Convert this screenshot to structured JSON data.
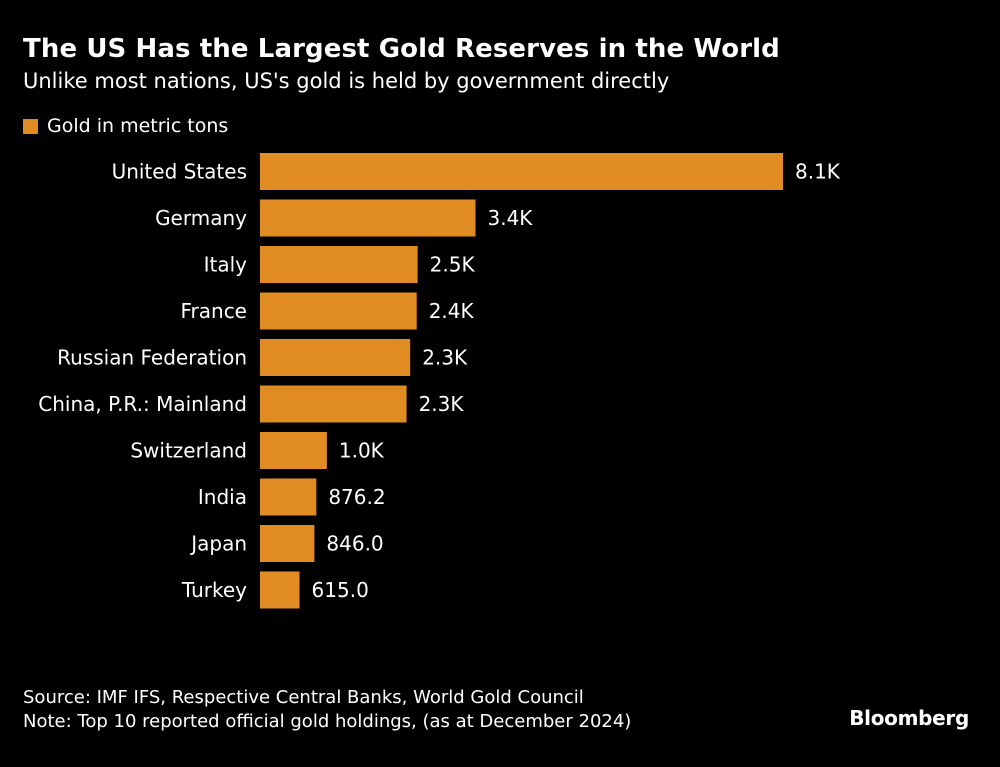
{
  "header": {
    "title": "The US Has the Largest Gold Reserves in the World",
    "subtitle": "Unlike most nations, US's gold is held by government directly"
  },
  "legend": {
    "label": "Gold in metric tons"
  },
  "colors": {
    "bar": "#e08c22",
    "background": "#000000",
    "text": "#ffffff"
  },
  "chart_data": {
    "type": "bar",
    "orientation": "horizontal",
    "title": "The US Has the Largest Gold Reserves in the World",
    "subtitle": "Unlike most nations, US's gold is held by government directly",
    "categories": [
      "United States",
      "Germany",
      "Italy",
      "France",
      "Russian Federation",
      "China, P.R.: Mainland",
      "Switzerland",
      "India",
      "Japan",
      "Turkey"
    ],
    "series": [
      {
        "name": "Gold in metric tons",
        "values": [
          8133.5,
          3351.5,
          2451.8,
          2437.0,
          2335.8,
          2279.6,
          1040.0,
          876.2,
          846.0,
          615.0
        ],
        "labels": [
          "8.1K",
          "3.4K",
          "2.5K",
          "2.4K",
          "2.3K",
          "2.3K",
          "1.0K",
          "876.2",
          "846.0",
          "615.0"
        ]
      }
    ],
    "xlim": [
      0,
      8133.5
    ],
    "grid": false,
    "legend_position": "top-left"
  },
  "footer": {
    "source": "Source: IMF IFS, Respective Central Banks, World Gold Council",
    "note": "Note: Top 10 reported official gold holdings, (as at December 2024)",
    "logo": "Bloomberg"
  }
}
